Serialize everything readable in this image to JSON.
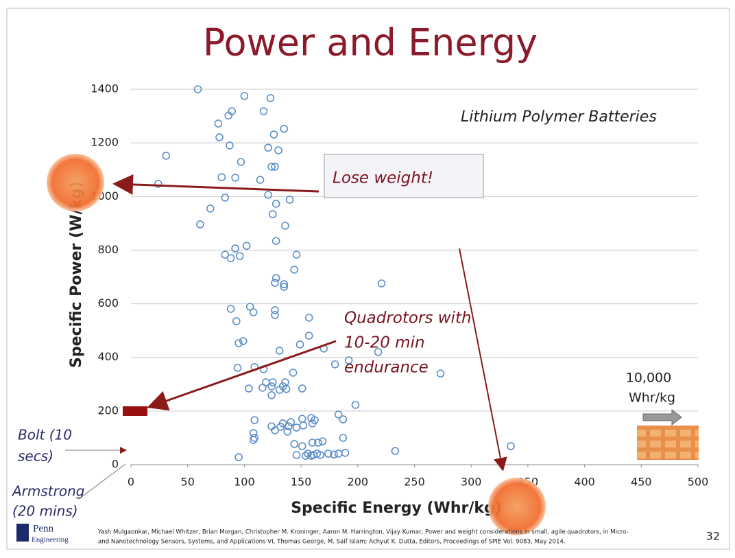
{
  "chart_data": {
    "type": "scatter",
    "title": "Power and Energy",
    "xlabel": "Specific Energy (Whr/kg)",
    "ylabel": "Specific Power (W/kg)",
    "xlim": [
      0,
      500
    ],
    "xticks": [
      0,
      50,
      100,
      150,
      200,
      250,
      300,
      350,
      400,
      450,
      500
    ],
    "ylim": [
      0,
      1400
    ],
    "yticks": [
      0,
      200,
      400,
      600,
      800,
      1000,
      1200,
      1400
    ],
    "grid": true,
    "series": [
      {
        "name": "Lithium Polymer Batteries",
        "color": "#5b8ec9",
        "x": [
          59,
          100,
          123,
          89,
          117,
          86,
          77,
          135,
          78,
          126,
          87,
          121,
          130,
          31,
          97,
          127,
          124,
          80,
          92,
          114,
          24,
          121,
          83,
          140,
          128,
          70,
          125,
          61,
          136,
          128,
          102,
          92,
          146,
          83,
          96,
          88,
          144,
          128,
          127,
          135,
          135,
          221,
          88,
          105,
          127,
          108,
          127,
          93,
          157,
          157,
          99,
          95,
          149,
          170,
          131,
          218,
          192,
          180,
          94,
          109,
          117,
          143,
          273,
          119,
          125,
          136,
          151,
          104,
          116,
          124,
          131,
          137,
          134,
          124,
          198,
          183,
          187,
          109,
          159,
          162,
          151,
          141,
          134,
          124,
          160,
          152,
          139,
          146,
          132,
          127,
          138,
          108,
          109,
          187,
          108,
          169,
          165,
          160,
          144,
          151,
          335,
          233,
          189,
          156,
          164,
          174,
          183,
          146,
          161,
          167,
          95,
          154,
          159,
          179
        ],
        "values": [
          1400,
          1375,
          1367,
          1318,
          1318,
          1302,
          1272,
          1252,
          1221,
          1231,
          1190,
          1182,
          1172,
          1152,
          1129,
          1111,
          1111,
          1072,
          1070,
          1062,
          1047,
          1006,
          996,
          988,
          973,
          955,
          934,
          896,
          891,
          834,
          816,
          806,
          783,
          783,
          778,
          770,
          727,
          696,
          678,
          673,
          663,
          676,
          581,
          589,
          576,
          568,
          558,
          535,
          548,
          481,
          461,
          453,
          448,
          433,
          425,
          420,
          389,
          374,
          361,
          364,
          356,
          343,
          340,
          307,
          307,
          307,
          284,
          284,
          287,
          292,
          279,
          282,
          292,
          259,
          223,
          187,
          169,
          166,
          174,
          166,
          171,
          159,
          154,
          143,
          154,
          146,
          143,
          138,
          141,
          128,
          123,
          118,
          100,
          100,
          92,
          87,
          82,
          82,
          77,
          69,
          69,
          51,
          44,
          41,
          41,
          41,
          41,
          36,
          36,
          36,
          28,
          33,
          33,
          38
        ]
      }
    ],
    "annotations": {
      "lose_weight": "Lose weight!",
      "quadrotors": [
        "Quadrotors with",
        "10-20 min",
        "endurance"
      ],
      "ten_thousand": [
        "10,000",
        "Whr/kg"
      ],
      "bolt": [
        "Bolt (10",
        "secs)"
      ],
      "armstrong": [
        "Armstrong",
        "(20 mins)"
      ]
    },
    "citation": [
      "Yash Mulgaonkar, Michael Whitzer, Brian Morgan, Christopher M. Kroninger, Aaron M. Harrington, Vijay Kumar, Power and weight considerations in small, agile quadrotors, in Micro-",
      "and Nanotechnology Sensors, Systems, and Applications VI, Thomas George, M. Saif Islam; Achyut K. Dutta, Editors, Proceedings of SPIE Vol. 9083, May 2014."
    ],
    "page_number": "32",
    "logo": [
      "Penn",
      "Engineering"
    ]
  }
}
